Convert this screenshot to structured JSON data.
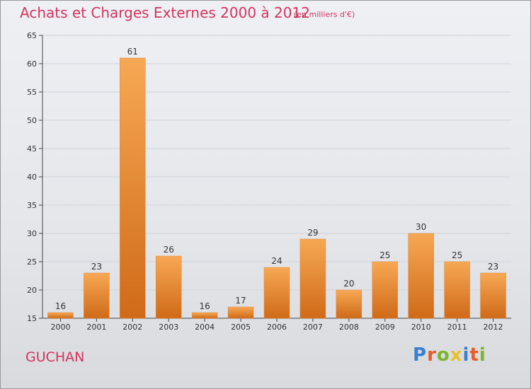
{
  "title": "Achats et Charges Externes 2000 à 2012",
  "subtitle": "(en milliers d'€)",
  "location": "GUCHAN",
  "logo": {
    "text": "Proxiti",
    "letter_colors": [
      "#3a7fd0",
      "#e85b2a",
      "#7bb52c",
      "#e8c12a",
      "#3a7fd0",
      "#e85b2a",
      "#7bb52c"
    ]
  },
  "colors": {
    "bar_top": "#f7a854",
    "bar_bottom": "#cf6a18",
    "text_accent": "#d2355f"
  },
  "chart_data": {
    "type": "bar",
    "title": "Achats et Charges Externes 2000 à 2012",
    "subtitle": "(en milliers d'€)",
    "categories": [
      "2000",
      "2001",
      "2002",
      "2003",
      "2004",
      "2005",
      "2006",
      "2007",
      "2008",
      "2009",
      "2010",
      "2011",
      "2012"
    ],
    "values": [
      16,
      23,
      61,
      26,
      16,
      17,
      24,
      29,
      20,
      25,
      30,
      25,
      23
    ],
    "ylim": [
      15,
      65
    ],
    "yticks": [
      15,
      20,
      25,
      30,
      35,
      40,
      45,
      50,
      55,
      60,
      65
    ],
    "grid": true,
    "data_labels": true
  }
}
